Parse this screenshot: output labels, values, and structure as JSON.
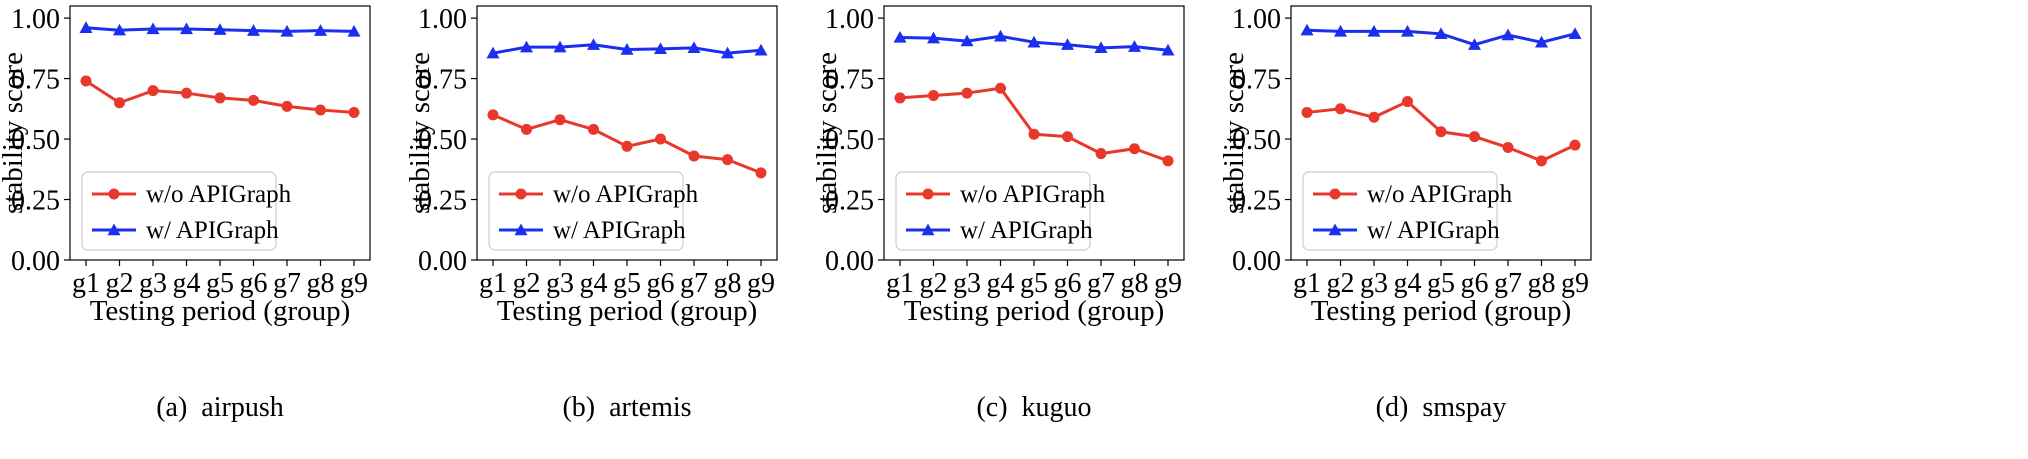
{
  "chart_data": [
    {
      "type": "line",
      "caption": "(a)  airpush",
      "categories": [
        "g1",
        "g2",
        "g3",
        "g4",
        "g5",
        "g6",
        "g7",
        "g8",
        "g9"
      ],
      "xlabel": "Testing period (group)",
      "ylabel": "stability score",
      "ylim": [
        0,
        1.05
      ],
      "yticks": [
        "0.00",
        "0.25",
        "0.50",
        "0.75",
        "1.00"
      ],
      "legend_position": "lower-left",
      "series": [
        {
          "name": "w/o APIGraph",
          "color": "#e8382c",
          "marker": "circle",
          "values": [
            0.74,
            0.65,
            0.7,
            0.69,
            0.67,
            0.66,
            0.635,
            0.62,
            0.61
          ]
        },
        {
          "name": "w/ APIGraph",
          "color": "#1a2ff0",
          "marker": "triangle",
          "values": [
            0.96,
            0.95,
            0.955,
            0.955,
            0.952,
            0.948,
            0.945,
            0.948,
            0.945
          ]
        }
      ]
    },
    {
      "type": "line",
      "caption": "(b)  artemis",
      "categories": [
        "g1",
        "g2",
        "g3",
        "g4",
        "g5",
        "g6",
        "g7",
        "g8",
        "g9"
      ],
      "xlabel": "Testing period (group)",
      "ylabel": "stability score",
      "ylim": [
        0,
        1.05
      ],
      "yticks": [
        "0.00",
        "0.25",
        "0.50",
        "0.75",
        "1.00"
      ],
      "legend_position": "lower-left",
      "series": [
        {
          "name": "w/o APIGraph",
          "color": "#e8382c",
          "marker": "circle",
          "values": [
            0.6,
            0.54,
            0.58,
            0.54,
            0.47,
            0.5,
            0.43,
            0.415,
            0.36
          ]
        },
        {
          "name": "w/ APIGraph",
          "color": "#1a2ff0",
          "marker": "triangle",
          "values": [
            0.855,
            0.88,
            0.88,
            0.89,
            0.87,
            0.873,
            0.877,
            0.855,
            0.867
          ]
        }
      ]
    },
    {
      "type": "line",
      "caption": "(c)  kuguo",
      "categories": [
        "g1",
        "g2",
        "g3",
        "g4",
        "g5",
        "g6",
        "g7",
        "g8",
        "g9"
      ],
      "xlabel": "Testing period (group)",
      "ylabel": "stability score",
      "ylim": [
        0,
        1.05
      ],
      "yticks": [
        "0.00",
        "0.25",
        "0.50",
        "0.75",
        "1.00"
      ],
      "legend_position": "lower-left",
      "series": [
        {
          "name": "w/o APIGraph",
          "color": "#e8382c",
          "marker": "circle",
          "values": [
            0.67,
            0.68,
            0.69,
            0.71,
            0.52,
            0.51,
            0.44,
            0.46,
            0.41
          ]
        },
        {
          "name": "w/ APIGraph",
          "color": "#1a2ff0",
          "marker": "triangle",
          "values": [
            0.92,
            0.917,
            0.905,
            0.925,
            0.9,
            0.89,
            0.877,
            0.882,
            0.867
          ]
        }
      ]
    },
    {
      "type": "line",
      "caption": "(d)  smspay",
      "categories": [
        "g1",
        "g2",
        "g3",
        "g4",
        "g5",
        "g6",
        "g7",
        "g8",
        "g9"
      ],
      "xlabel": "Testing period (group)",
      "ylabel": "stability score",
      "ylim": [
        0,
        1.05
      ],
      "yticks": [
        "0.00",
        "0.25",
        "0.50",
        "0.75",
        "1.00"
      ],
      "legend_position": "lower-left",
      "series": [
        {
          "name": "w/o APIGraph",
          "color": "#e8382c",
          "marker": "circle",
          "values": [
            0.61,
            0.625,
            0.59,
            0.655,
            0.53,
            0.51,
            0.465,
            0.41,
            0.475
          ]
        },
        {
          "name": "w/ APIGraph",
          "color": "#1a2ff0",
          "marker": "triangle",
          "values": [
            0.95,
            0.945,
            0.945,
            0.945,
            0.935,
            0.89,
            0.93,
            0.9,
            0.935
          ]
        }
      ]
    }
  ]
}
